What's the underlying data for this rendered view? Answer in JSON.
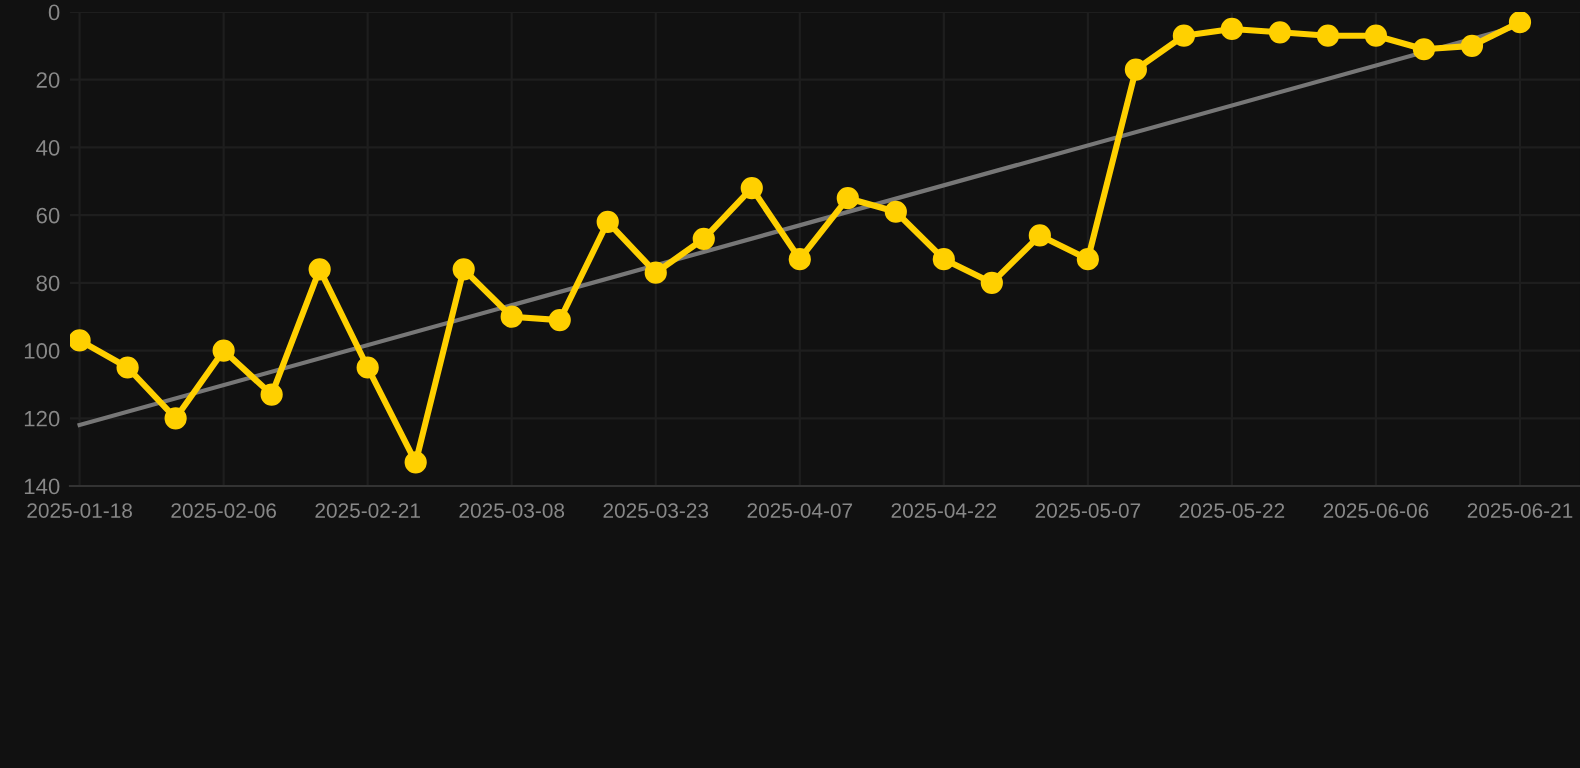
{
  "chart_data": {
    "type": "line",
    "categories": [
      "2025-01-18",
      null,
      null,
      "2025-02-06",
      null,
      null,
      "2025-02-21",
      null,
      null,
      "2025-03-08",
      null,
      null,
      "2025-03-23",
      null,
      null,
      "2025-04-07",
      null,
      null,
      "2025-04-22",
      null,
      null,
      "2025-05-07",
      null,
      null,
      "2025-05-22",
      null,
      null,
      "2025-06-06",
      null,
      null,
      "2025-06-21"
    ],
    "series": [
      {
        "color": "#ffd000",
        "marker": "circle",
        "values": [
          97,
          105,
          120,
          100,
          113,
          76,
          105,
          133,
          76,
          90,
          91,
          62,
          77,
          67,
          52,
          73,
          55,
          59,
          73,
          80,
          66,
          73,
          17,
          7,
          5,
          6,
          7,
          7,
          11,
          10,
          3
        ]
      },
      {
        "type": "line",
        "color": "#777777",
        "marker": "none",
        "values": [
          122,
          null,
          null,
          null,
          null,
          null,
          null,
          null,
          null,
          null,
          null,
          null,
          null,
          null,
          null,
          null,
          null,
          null,
          null,
          null,
          null,
          null,
          null,
          null,
          null,
          null,
          null,
          null,
          null,
          null,
          4
        ]
      }
    ],
    "ylim": [
      140,
      0
    ],
    "yticks": [
      0,
      20,
      40,
      60,
      80,
      100,
      120,
      140
    ],
    "grid": true,
    "line_style": "solid"
  }
}
